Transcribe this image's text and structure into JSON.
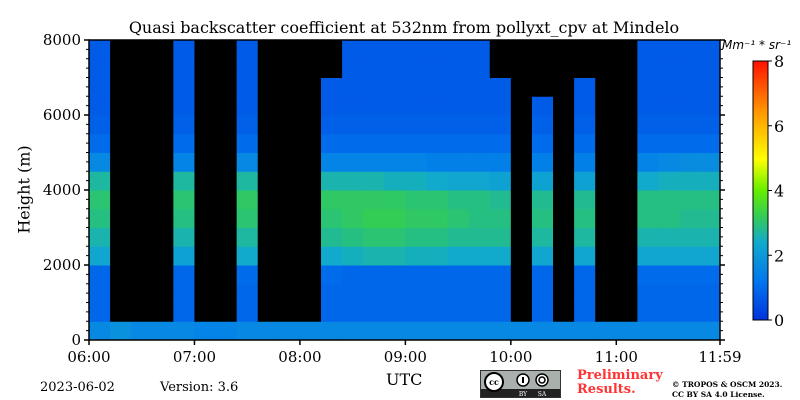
{
  "chart_data": {
    "type": "heatmap",
    "title": "Quasi backscatter coefficient at 532nm from pollyxt_cpv at Mindelo",
    "xlabel": "UTC",
    "ylabel": "Height (m)",
    "colorbar_label": "Mm⁻¹ * sr⁻¹",
    "x_ticks": [
      "06:00",
      "07:00",
      "08:00",
      "09:00",
      "10:00",
      "11:00",
      "11:59"
    ],
    "y_ticks": [
      "0",
      "2000",
      "4000",
      "6000",
      "8000"
    ],
    "colorbar_ticks": [
      "0",
      "2",
      "4",
      "6",
      "8"
    ],
    "xlim_minutes_after_0600": [
      0,
      359
    ],
    "ylim": [
      0,
      8000
    ],
    "clim": [
      0,
      8
    ],
    "colormap": "jet-like (blue to red); black = no/obscured signal",
    "time_bin_minutes": 12,
    "height_bin_m": 500,
    "values": [
      [
        1.6,
        0.9,
        0.9,
        0.9,
        2.3,
        2.6,
        2.9,
        3.0,
        2.7,
        1.6,
        1.0,
        0.8,
        0.7,
        0.7,
        0.7,
        0.7
      ],
      [
        1.8,
        null,
        null,
        null,
        null,
        null,
        null,
        null,
        null,
        null,
        null,
        null,
        null,
        null,
        null,
        null
      ],
      [
        1.6,
        null,
        null,
        null,
        null,
        null,
        null,
        null,
        null,
        null,
        null,
        null,
        null,
        null,
        null,
        null
      ],
      [
        1.6,
        null,
        null,
        null,
        null,
        null,
        null,
        null,
        null,
        null,
        null,
        null,
        null,
        null,
        null,
        null
      ],
      [
        1.6,
        0.9,
        0.9,
        0.9,
        2.2,
        2.6,
        2.9,
        3.0,
        2.7,
        1.5,
        1.0,
        0.8,
        0.7,
        0.7,
        0.7,
        0.7
      ],
      [
        1.5,
        null,
        null,
        null,
        null,
        null,
        null,
        null,
        null,
        null,
        null,
        null,
        null,
        null,
        null,
        null
      ],
      [
        1.5,
        null,
        null,
        null,
        null,
        null,
        null,
        null,
        null,
        null,
        null,
        null,
        null,
        null,
        null,
        null
      ],
      [
        1.6,
        0.9,
        0.9,
        1.0,
        2.4,
        2.7,
        3.0,
        3.1,
        2.7,
        1.6,
        1.0,
        0.8,
        0.7,
        0.7,
        0.7,
        0.7
      ],
      [
        1.6,
        null,
        null,
        null,
        null,
        null,
        null,
        null,
        null,
        null,
        null,
        null,
        null,
        null,
        null,
        null
      ],
      [
        1.6,
        null,
        null,
        null,
        null,
        null,
        null,
        null,
        null,
        null,
        null,
        null,
        null,
        null,
        null,
        null
      ],
      [
        1.6,
        null,
        null,
        null,
        null,
        null,
        null,
        null,
        null,
        null,
        null,
        null,
        null,
        null,
        null,
        null
      ],
      [
        1.6,
        0.9,
        0.9,
        1.0,
        2.4,
        2.8,
        3.0,
        3.1,
        2.6,
        1.5,
        1.0,
        0.8,
        0.7,
        0.7,
        null,
        null
      ],
      [
        1.6,
        0.9,
        0.9,
        0.9,
        2.5,
        2.9,
        3.1,
        3.1,
        2.6,
        1.5,
        1.0,
        0.8,
        0.7,
        0.7,
        0.7,
        0.7
      ],
      [
        1.6,
        0.9,
        0.9,
        0.9,
        2.6,
        3.0,
        3.2,
        3.1,
        2.6,
        1.5,
        1.0,
        0.8,
        0.7,
        0.7,
        0.7,
        0.7
      ],
      [
        1.6,
        0.9,
        0.9,
        0.9,
        2.6,
        3.0,
        3.2,
        3.1,
        2.5,
        1.5,
        1.0,
        0.8,
        0.7,
        0.7,
        0.7,
        0.7
      ],
      [
        1.6,
        0.9,
        0.9,
        0.9,
        2.5,
        2.9,
        3.1,
        3.0,
        2.5,
        1.5,
        1.0,
        0.8,
        0.7,
        0.7,
        0.7,
        0.7
      ],
      [
        1.6,
        0.9,
        0.9,
        0.9,
        2.5,
        2.9,
        3.1,
        3.0,
        2.4,
        1.4,
        1.0,
        0.8,
        0.7,
        0.7,
        0.7,
        0.7
      ],
      [
        1.6,
        0.9,
        0.9,
        0.9,
        2.4,
        2.8,
        3.0,
        2.9,
        2.3,
        1.4,
        1.0,
        0.8,
        0.7,
        0.7,
        0.7,
        0.7
      ],
      [
        1.6,
        0.9,
        0.9,
        0.9,
        2.4,
        2.8,
        2.9,
        2.9,
        2.3,
        1.4,
        1.0,
        0.8,
        0.7,
        0.7,
        0.7,
        0.7
      ],
      [
        1.6,
        0.9,
        0.9,
        0.9,
        2.4,
        2.8,
        2.9,
        2.8,
        2.2,
        1.4,
        1.0,
        0.8,
        0.7,
        0.7,
        null,
        null
      ],
      [
        1.6,
        null,
        null,
        null,
        null,
        null,
        null,
        null,
        null,
        null,
        null,
        null,
        null,
        null,
        null,
        null
      ],
      [
        1.6,
        0.9,
        0.9,
        0.9,
        2.3,
        2.7,
        2.9,
        2.8,
        2.2,
        1.4,
        1.0,
        0.8,
        0.7,
        null,
        null,
        null
      ],
      [
        1.6,
        null,
        null,
        null,
        null,
        null,
        null,
        null,
        null,
        null,
        null,
        null,
        null,
        null,
        null,
        null
      ],
      [
        1.6,
        0.9,
        0.9,
        0.9,
        2.3,
        2.7,
        2.9,
        2.8,
        2.2,
        1.4,
        1.0,
        0.8,
        0.7,
        0.7,
        null,
        null
      ],
      [
        1.6,
        null,
        null,
        null,
        null,
        null,
        null,
        null,
        null,
        null,
        null,
        null,
        null,
        null,
        null,
        null
      ],
      [
        1.6,
        null,
        null,
        null,
        null,
        null,
        null,
        null,
        null,
        null,
        null,
        null,
        null,
        null,
        null,
        null
      ],
      [
        1.6,
        0.9,
        0.9,
        1.0,
        2.3,
        2.6,
        2.9,
        2.9,
        2.4,
        1.5,
        1.0,
        0.8,
        0.7,
        0.7,
        0.7,
        0.7
      ],
      [
        1.6,
        0.9,
        0.9,
        1.0,
        2.3,
        2.6,
        2.9,
        2.9,
        2.5,
        1.6,
        1.0,
        0.8,
        0.7,
        0.7,
        0.7,
        0.7
      ],
      [
        1.6,
        0.9,
        0.9,
        1.0,
        2.3,
        2.6,
        2.8,
        2.9,
        2.5,
        1.7,
        1.0,
        0.8,
        0.7,
        0.7,
        0.7,
        0.7
      ],
      [
        1.6,
        0.9,
        0.9,
        1.0,
        2.3,
        2.6,
        2.8,
        2.9,
        2.5,
        1.7,
        1.0,
        0.8,
        0.7,
        0.7,
        0.7,
        0.7
      ]
    ]
  },
  "footer": {
    "date": "2023-06-02",
    "version": "Version: 3.6",
    "preliminary_line1": "Preliminary",
    "preliminary_line2": "Results.",
    "copyright_line1": "© TROPOS & OSCM 2023.",
    "copyright_line2": "CC BY SA 4.0 License.",
    "license_logo_text": [
      "cc",
      "BY",
      "SA"
    ]
  }
}
